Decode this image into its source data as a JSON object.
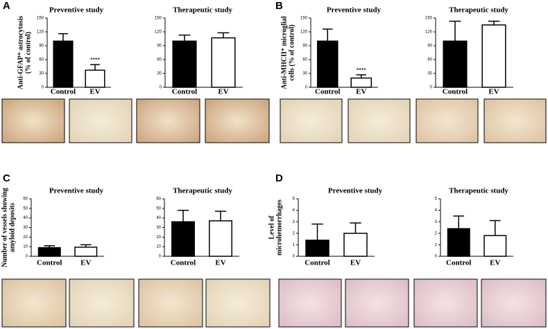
{
  "panel_labels": [
    "A",
    "B",
    "C",
    "D"
  ],
  "chart_data": [
    {
      "type": "bar",
      "title": "Preventive study",
      "ylabel": [
        "Anti-GFAP⁺ astrocytosis",
        "(% of control)"
      ],
      "categories": [
        "Control",
        "EV"
      ],
      "values": [
        100,
        37
      ],
      "errors": [
        16,
        12
      ],
      "value_annotations": [
        null,
        "****"
      ],
      "colors": [
        "#000000",
        "#ffffff"
      ],
      "ylim": [
        0,
        150
      ],
      "yticks": [
        0,
        30,
        60,
        90,
        120,
        150
      ]
    },
    {
      "type": "bar",
      "title": "Therapeutic study",
      "categories": [
        "Control",
        "EV"
      ],
      "values": [
        100,
        107
      ],
      "errors": [
        13,
        11
      ],
      "colors": [
        "#000000",
        "#ffffff"
      ],
      "ylim": [
        0,
        150
      ],
      "yticks": [
        0,
        30,
        60,
        90,
        120,
        150
      ]
    },
    {
      "type": "bar",
      "title": "Preventive study",
      "ylabel": [
        "Anti-MHCII⁺ microglial",
        "cells (% of control)"
      ],
      "categories": [
        "Control",
        "EV"
      ],
      "values": [
        100,
        20
      ],
      "errors": [
        26,
        7
      ],
      "value_annotations": [
        null,
        "****"
      ],
      "colors": [
        "#000000",
        "#ffffff"
      ],
      "ylim": [
        0,
        150
      ],
      "yticks": [
        0,
        30,
        60,
        90,
        120,
        150
      ]
    },
    {
      "type": "bar",
      "title": "Therapeutic study",
      "categories": [
        "Control",
        "EV"
      ],
      "values": [
        100,
        135
      ],
      "errors": [
        43,
        8
      ],
      "colors": [
        "#000000",
        "#ffffff"
      ],
      "ylim": [
        0,
        150
      ],
      "yticks": [
        0,
        30,
        60,
        90,
        120,
        150
      ]
    },
    {
      "type": "bar",
      "title": "Preventive study",
      "ylabel": [
        "Number of vessels showing",
        "amyloid deposits"
      ],
      "categories": [
        "Control",
        "EV"
      ],
      "values": [
        9,
        9.5
      ],
      "errors": [
        2,
        2.5
      ],
      "colors": [
        "#000000",
        "#ffffff"
      ],
      "ylim": [
        0,
        60
      ],
      "yticks": [
        0,
        10,
        20,
        30,
        40,
        50,
        60
      ]
    },
    {
      "type": "bar",
      "title": "Therapeutic study",
      "categories": [
        "Control",
        "EV"
      ],
      "values": [
        36,
        37
      ],
      "errors": [
        12,
        10
      ],
      "colors": [
        "#000000",
        "#ffffff"
      ],
      "ylim": [
        0,
        60
      ],
      "yticks": [
        0,
        10,
        20,
        30,
        40,
        50,
        60
      ]
    },
    {
      "type": "bar",
      "title": "Preventive study",
      "ylabel": [
        "Level of",
        "microhemorrhages"
      ],
      "categories": [
        "Control",
        "EV"
      ],
      "values": [
        1.4,
        2.0
      ],
      "errors": [
        1.4,
        0.9
      ],
      "colors": [
        "#000000",
        "#ffffff"
      ],
      "ylim": [
        0,
        5
      ],
      "yticks": [
        0,
        1,
        2,
        3,
        4,
        5
      ]
    },
    {
      "type": "bar",
      "title": "Therapeutic study",
      "categories": [
        "Control",
        "EV"
      ],
      "values": [
        2.4,
        1.8
      ],
      "errors": [
        1.1,
        1.3
      ],
      "colors": [
        "#000000",
        "#ffffff"
      ],
      "ylim": [
        0,
        5
      ],
      "yticks": [
        0,
        1,
        2,
        3,
        4,
        5
      ]
    }
  ]
}
